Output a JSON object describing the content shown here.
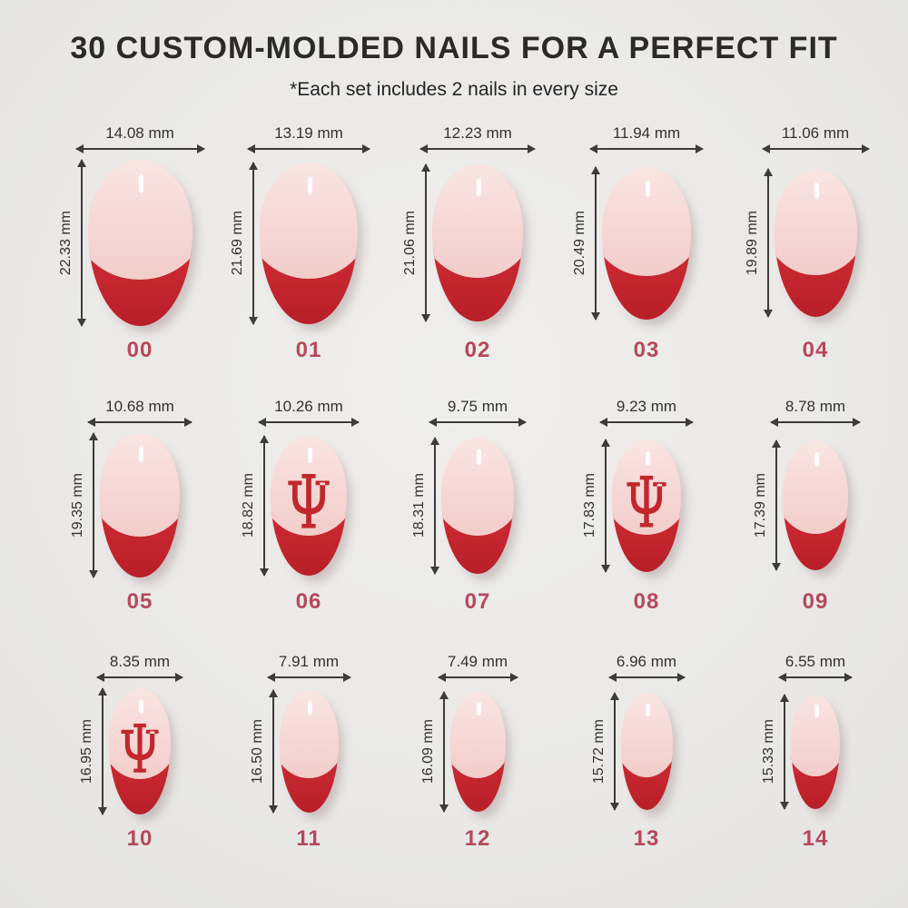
{
  "header": {
    "title": "30 CUSTOM-MOLDED NAILS FOR A PERFECT FIT",
    "subtitle": "*Each set includes 2 nails in every size"
  },
  "unit": "mm",
  "colors": {
    "background": "#ecebe9",
    "title_text": "#2b2a28",
    "measurement_text": "#333231",
    "arrow": "#3d3c3b",
    "size_number": "#b5495b",
    "french_tip_red": "#c2242e",
    "logo_red": "#c1272d",
    "nail_pink": "#f6d8d5"
  },
  "nails": [
    {
      "size": "00",
      "width_label": "14.08 mm",
      "height_label": "22.33 mm",
      "width_mm": 14.08,
      "height_mm": 22.33,
      "has_logo": false
    },
    {
      "size": "01",
      "width_label": "13.19 mm",
      "height_label": "21.69 mm",
      "width_mm": 13.19,
      "height_mm": 21.69,
      "has_logo": false
    },
    {
      "size": "02",
      "width_label": "12.23 mm",
      "height_label": "21.06 mm",
      "width_mm": 12.23,
      "height_mm": 21.06,
      "has_logo": false
    },
    {
      "size": "03",
      "width_label": "11.94 mm",
      "height_label": "20.49 mm",
      "width_mm": 11.94,
      "height_mm": 20.49,
      "has_logo": false
    },
    {
      "size": "04",
      "width_label": "11.06 mm",
      "height_label": "19.89 mm",
      "width_mm": 11.06,
      "height_mm": 19.89,
      "has_logo": false
    },
    {
      "size": "05",
      "width_label": "10.68 mm",
      "height_label": "19.35 mm",
      "width_mm": 10.68,
      "height_mm": 19.35,
      "has_logo": false
    },
    {
      "size": "06",
      "width_label": "10.26 mm",
      "height_label": "18.82 mm",
      "width_mm": 10.26,
      "height_mm": 18.82,
      "has_logo": true
    },
    {
      "size": "07",
      "width_label": "9.75 mm",
      "height_label": "18.31 mm",
      "width_mm": 9.75,
      "height_mm": 18.31,
      "has_logo": false
    },
    {
      "size": "08",
      "width_label": "9.23 mm",
      "height_label": "17.83 mm",
      "width_mm": 9.23,
      "height_mm": 17.83,
      "has_logo": true
    },
    {
      "size": "09",
      "width_label": "8.78 mm",
      "height_label": "17.39 mm",
      "width_mm": 8.78,
      "height_mm": 17.39,
      "has_logo": false
    },
    {
      "size": "10",
      "width_label": "8.35 mm",
      "height_label": "16.95 mm",
      "width_mm": 8.35,
      "height_mm": 16.95,
      "has_logo": true
    },
    {
      "size": "11",
      "width_label": "7.91 mm",
      "height_label": "16.50 mm",
      "width_mm": 7.91,
      "height_mm": 16.5,
      "has_logo": false
    },
    {
      "size": "12",
      "width_label": "7.49 mm",
      "height_label": "16.09 mm",
      "width_mm": 7.49,
      "height_mm": 16.09,
      "has_logo": false
    },
    {
      "size": "13",
      "width_label": "6.96 mm",
      "height_label": "15.72 mm",
      "width_mm": 6.96,
      "height_mm": 15.72,
      "has_logo": false
    },
    {
      "size": "14",
      "width_label": "6.55 mm",
      "height_label": "15.33 mm",
      "width_mm": 6.55,
      "height_mm": 15.33,
      "has_logo": false
    }
  ]
}
